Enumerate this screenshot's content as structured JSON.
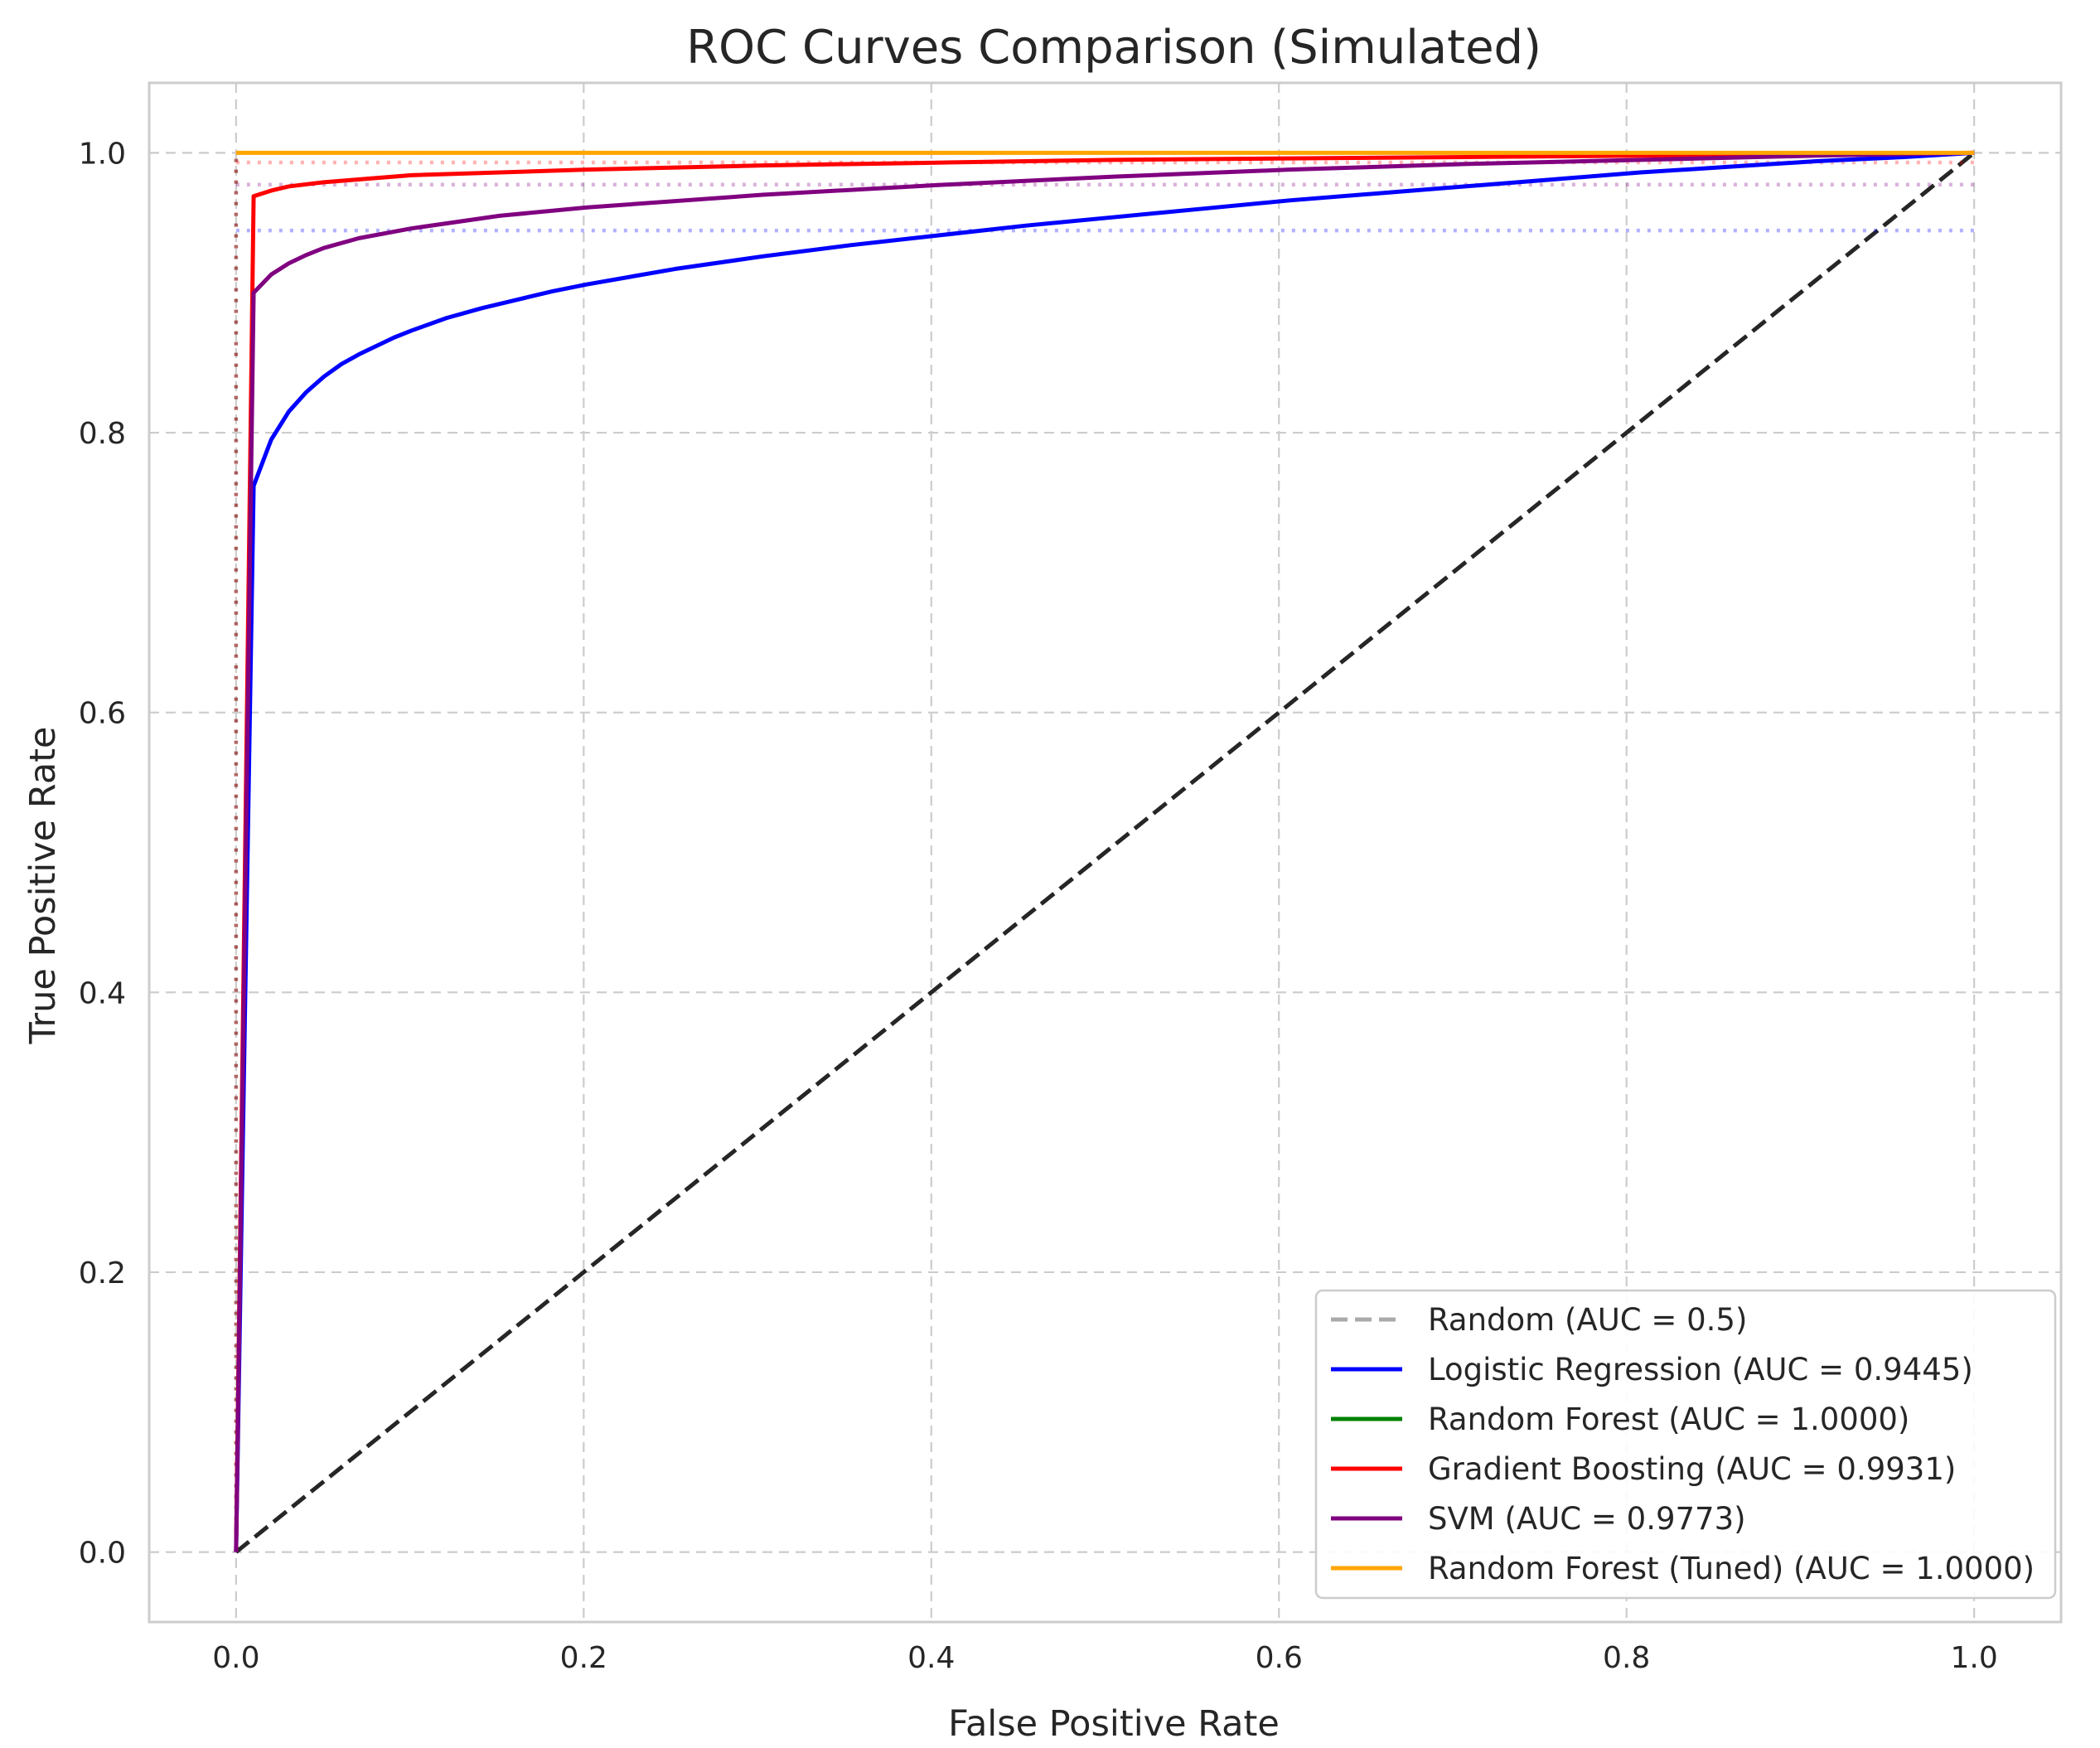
{
  "chart_data": {
    "type": "line",
    "title": "ROC Curves Comparison (Simulated)",
    "xlabel": "False Positive Rate",
    "ylabel": "True Positive Rate",
    "xlim": [
      -0.05,
      1.05
    ],
    "ylim": [
      -0.05,
      1.05
    ],
    "xticks": [
      0.0,
      0.2,
      0.4,
      0.6,
      0.8,
      1.0
    ],
    "xtick_labels": [
      "0.0",
      "0.2",
      "0.4",
      "0.6",
      "0.8",
      "1.0"
    ],
    "yticks": [
      0.0,
      0.2,
      0.4,
      0.6,
      0.8,
      1.0
    ],
    "ytick_labels": [
      "0.0",
      "0.2",
      "0.4",
      "0.6",
      "0.8",
      "1.0"
    ],
    "grid": true,
    "legend_position": "lower-right",
    "series": [
      {
        "name": "Random (AUC = 0.5)",
        "color": "#aaaaaa",
        "dash": "dashed",
        "legend_only": true,
        "x": [],
        "y": []
      },
      {
        "name": "Logistic Regression (AUC = 0.9445)",
        "color": "#0000ff",
        "dash": "solid",
        "x": [
          0.0,
          0.0101,
          0.0202,
          0.0303,
          0.0404,
          0.0505,
          0.0606,
          0.0707,
          0.0808,
          0.0909,
          0.101,
          0.1212,
          0.1414,
          0.1616,
          0.1818,
          0.202,
          0.2525,
          0.303,
          0.3535,
          0.404,
          0.4545,
          0.505,
          0.5556,
          0.6061,
          0.6566,
          0.7071,
          0.7576,
          0.8081,
          0.8586,
          0.9091,
          0.9596,
          1.0
        ],
        "y": [
          0.0,
          0.762,
          0.795,
          0.815,
          0.829,
          0.84,
          0.849,
          0.856,
          0.862,
          0.868,
          0.873,
          0.882,
          0.889,
          0.895,
          0.901,
          0.906,
          0.917,
          0.926,
          0.934,
          0.941,
          0.948,
          0.954,
          0.96,
          0.966,
          0.971,
          0.976,
          0.981,
          0.986,
          0.99,
          0.994,
          0.997,
          1.0
        ]
      },
      {
        "name": "Random Forest (AUC = 1.0000)",
        "color": "#008000",
        "dash": "solid",
        "legend_only": true,
        "x": [],
        "y": []
      },
      {
        "name": "Gradient Boosting (AUC = 0.9931)",
        "color": "#ff0000",
        "dash": "solid",
        "x": [
          0.0,
          0.0101,
          0.0202,
          0.0303,
          0.0505,
          0.0808,
          0.101,
          0.202,
          0.303,
          0.404,
          0.505,
          0.6061,
          0.7071,
          0.8081,
          0.9091,
          1.0
        ],
        "y": [
          0.0,
          0.969,
          0.973,
          0.976,
          0.979,
          0.982,
          0.984,
          0.988,
          0.991,
          0.993,
          0.995,
          0.996,
          0.997,
          0.998,
          0.999,
          1.0
        ]
      },
      {
        "name": "SVM (AUC = 0.9773)",
        "color": "#800080",
        "dash": "solid",
        "x": [
          0.0,
          0.0101,
          0.0202,
          0.0303,
          0.0404,
          0.0505,
          0.0707,
          0.101,
          0.1515,
          0.202,
          0.303,
          0.404,
          0.505,
          0.6061,
          0.7071,
          0.8081,
          0.9091,
          1.0
        ],
        "y": [
          0.0,
          0.9,
          0.913,
          0.921,
          0.927,
          0.932,
          0.939,
          0.946,
          0.955,
          0.961,
          0.97,
          0.977,
          0.983,
          0.988,
          0.992,
          0.995,
          0.998,
          1.0
        ]
      },
      {
        "name": "Random Forest (Tuned) (AUC = 1.0000)",
        "color": "#ffa500",
        "dash": "solid",
        "x": [
          0.0,
          1.0
        ],
        "y": [
          1.0,
          1.0
        ]
      }
    ],
    "extra_lines": [
      {
        "x": [
          0.0,
          1.0
        ],
        "y": [
          0.0,
          1.0
        ],
        "color": "#262626",
        "dash": "dashed"
      },
      {
        "x": [
          0.0,
          1.0
        ],
        "y": [
          0.9445,
          0.9445
        ],
        "color": "#0000ff",
        "dash": "dotted",
        "alpha": 0.3
      },
      {
        "x": [
          0.0,
          1.0
        ],
        "y": [
          0.9773,
          0.9773
        ],
        "color": "#800080",
        "dash": "dotted",
        "alpha": 0.3
      },
      {
        "x": [
          0.0,
          1.0
        ],
        "y": [
          0.9931,
          0.9931
        ],
        "color": "#ff0000",
        "dash": "dotted",
        "alpha": 0.3
      },
      {
        "x": [
          0.0,
          1.0
        ],
        "y": [
          1.0,
          1.0
        ],
        "color": "#ffa500",
        "dash": "dotted",
        "alpha": 0.3
      },
      {
        "x": [
          0.0,
          0.0
        ],
        "y": [
          0.0,
          1.0
        ],
        "color": "#800000",
        "dash": "dotted",
        "alpha": 0.6
      }
    ]
  }
}
